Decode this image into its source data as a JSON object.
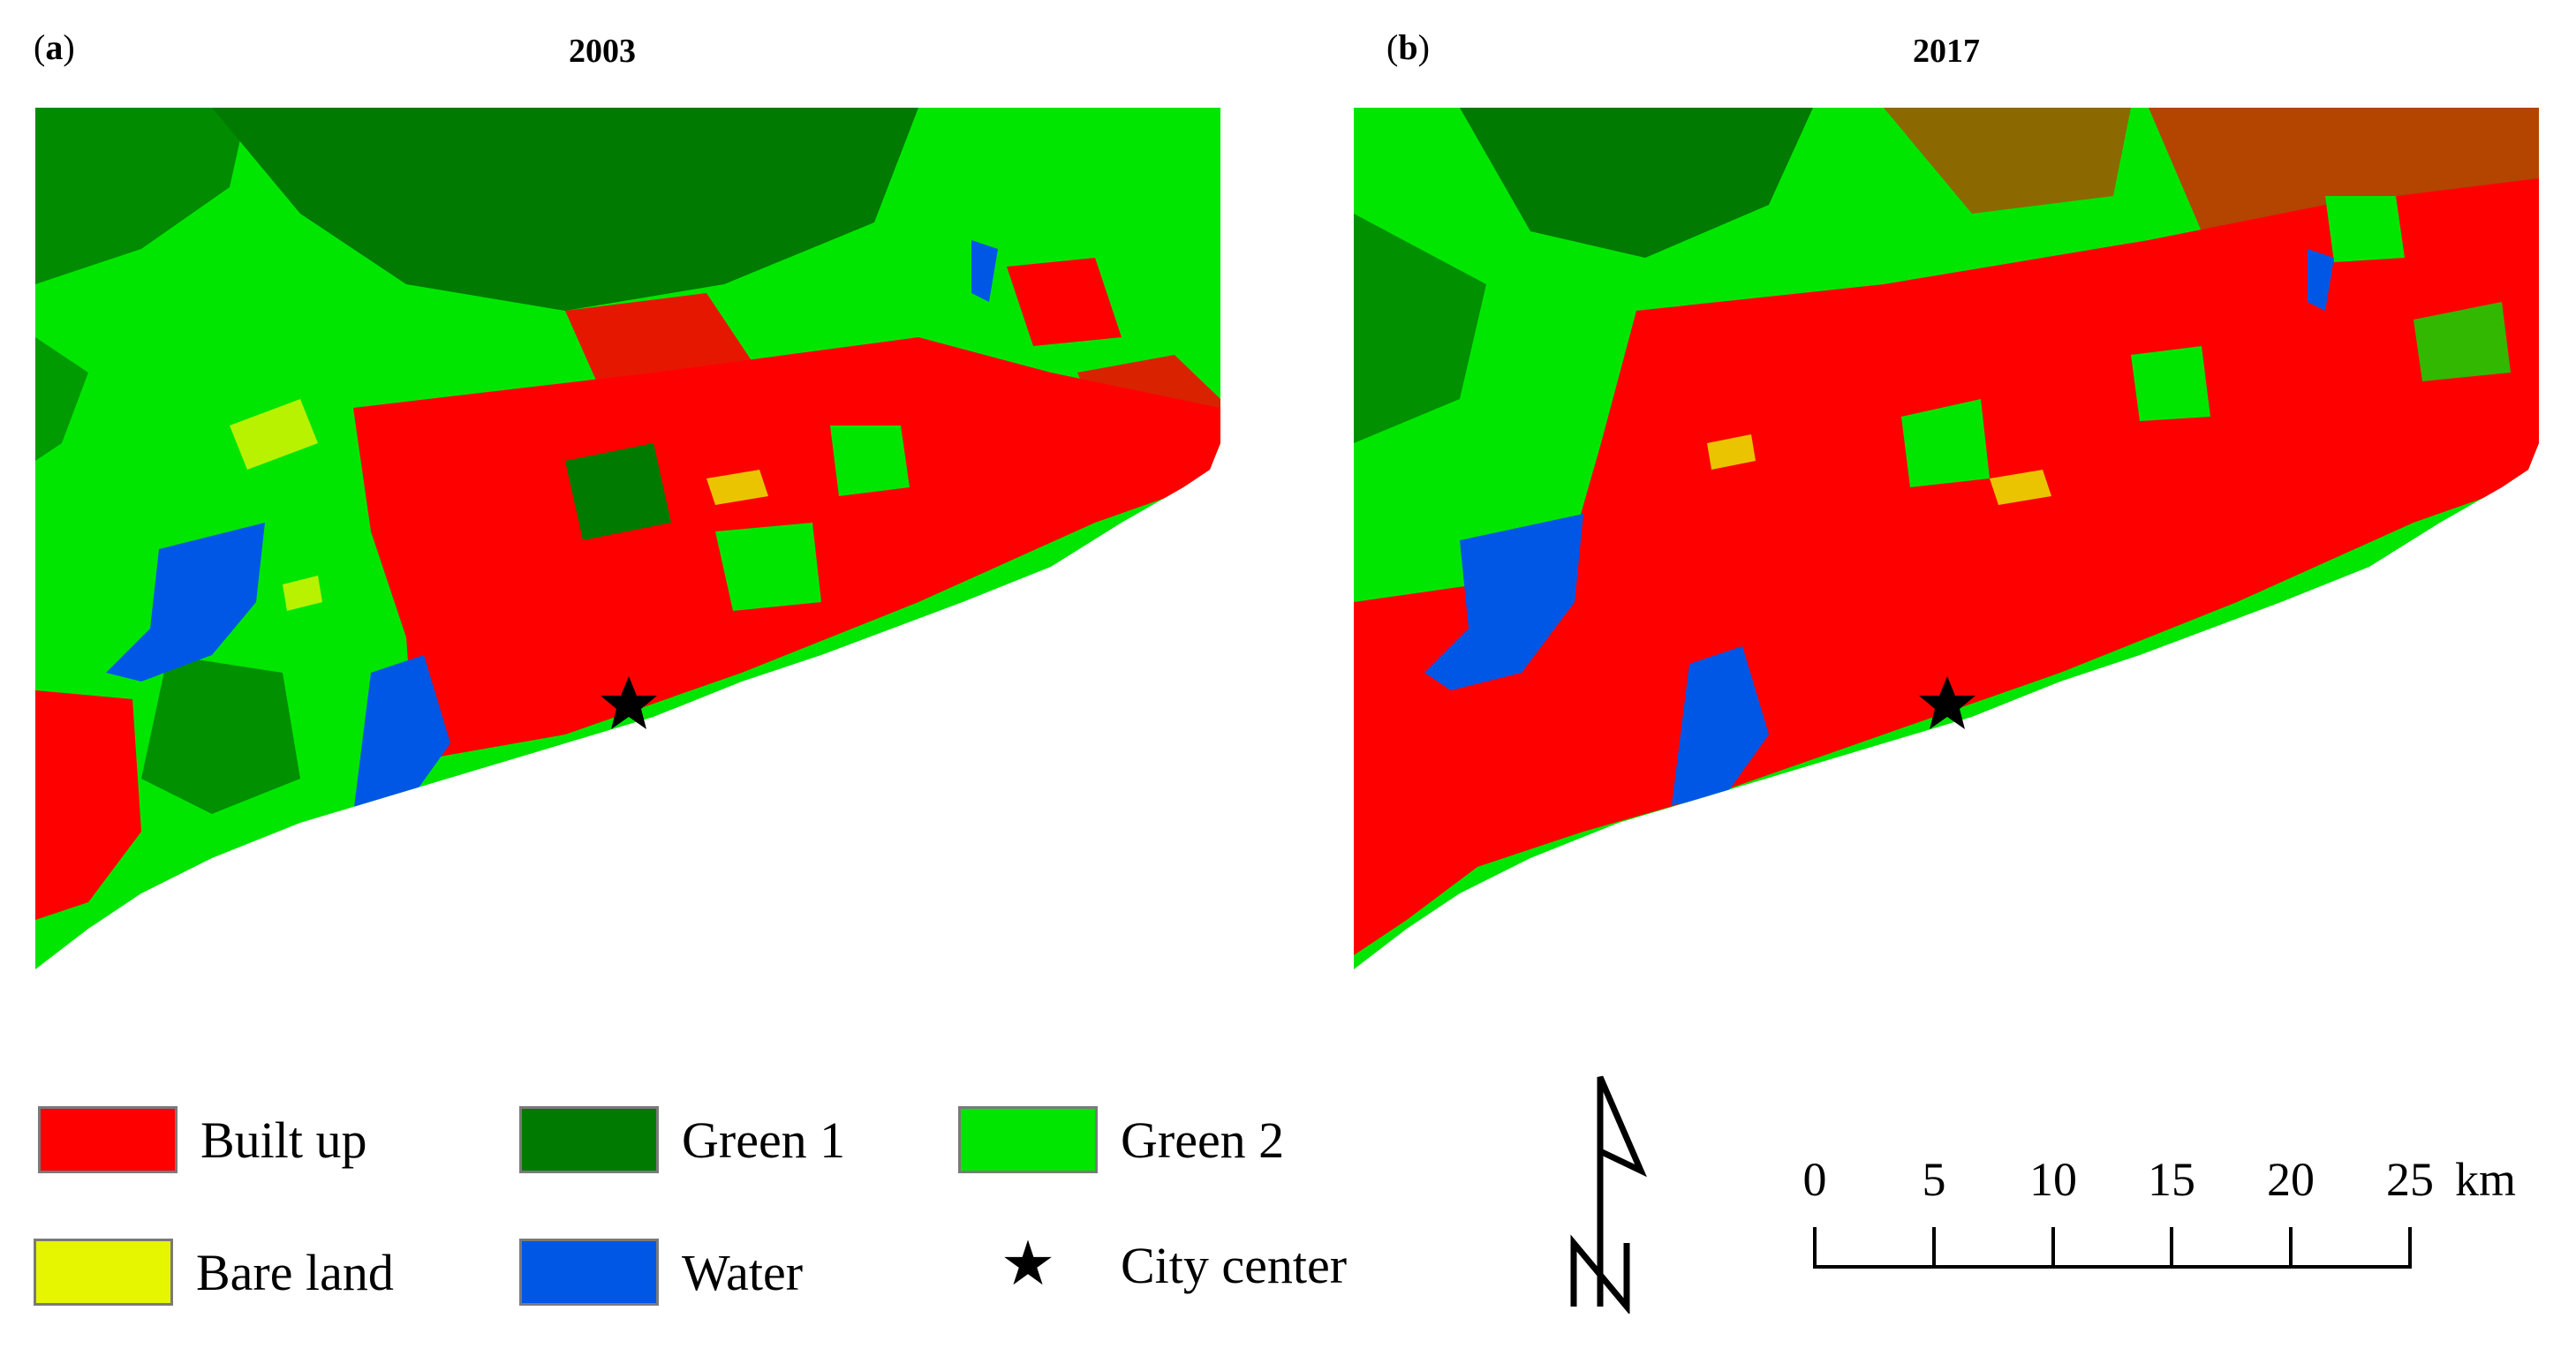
{
  "panels": [
    {
      "tag_open": "(",
      "tag_letter": "a",
      "tag_close": ")",
      "year": "2003"
    },
    {
      "tag_open": "(",
      "tag_letter": "b",
      "tag_close": ")",
      "year": "2017"
    }
  ],
  "legend": [
    {
      "label": "Built up",
      "color": "#ff0000"
    },
    {
      "label": "Green 1",
      "color": "#007a00"
    },
    {
      "label": "Green 2",
      "color": "#00e600"
    },
    {
      "label": "Bare land",
      "color": "#e6f500"
    },
    {
      "label": "Water",
      "color": "#0057e6"
    },
    {
      "label": "City center",
      "symbol": "star"
    }
  ],
  "scale_bar": {
    "ticks": [
      "0",
      "5",
      "10",
      "15",
      "20",
      "25"
    ],
    "unit": "km"
  },
  "north_arrow": "north-arrow-icon"
}
